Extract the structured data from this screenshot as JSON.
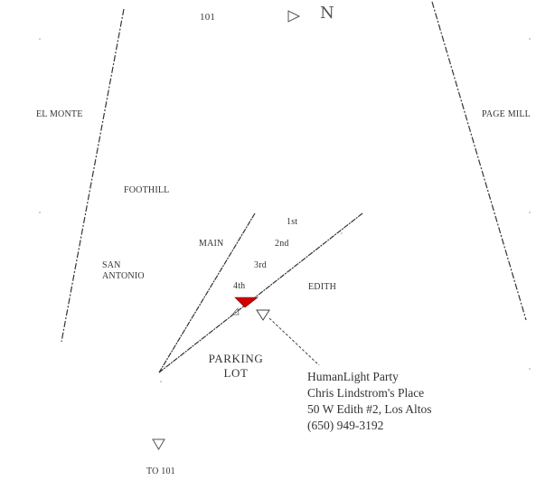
{
  "map": {
    "highways": {
      "top": "101",
      "bottom": "TO 101"
    },
    "north_marker": "N",
    "roads": {
      "el_monte": "EL MONTE",
      "page_mill": "PAGE MILL",
      "foothill": "FOOTHILL",
      "san_antonio_line1": "SAN",
      "san_antonio_line2": "ANTONIO",
      "main": "MAIN",
      "edith": "EDITH",
      "first": "1st",
      "second": "2nd",
      "third": "3rd",
      "fourth": "4th"
    },
    "parking_lot": {
      "line1": "PARKING",
      "line2": "LOT"
    },
    "destination": {
      "event": "HumanLight Party",
      "host": "Chris Lindstrom's Place",
      "address": "50 W Edith #2, Los Altos",
      "phone": "(650) 949-3192",
      "marker_color": "#d40000"
    },
    "icons": {
      "direction_top": "play-triangle-right-icon",
      "direction_bottom": "down-triangle-icon",
      "destination_marker": "red-triangle-marker-icon",
      "pointer_marker": "outline-triangle-icon"
    }
  }
}
